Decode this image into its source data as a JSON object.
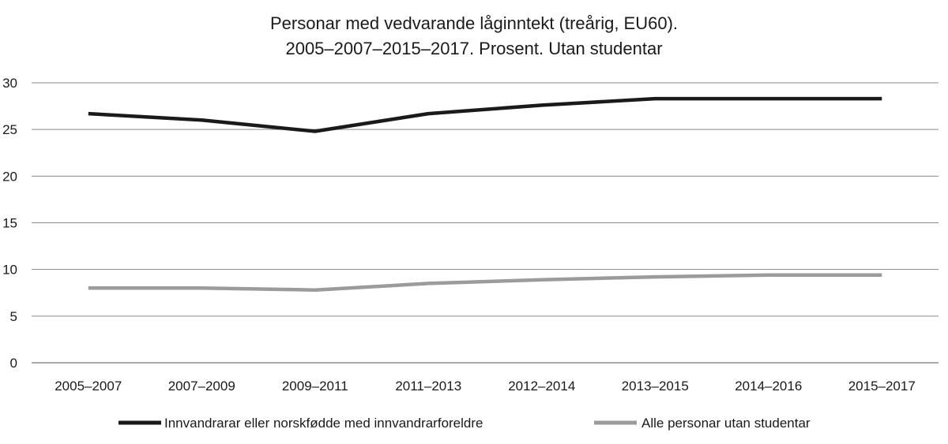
{
  "chart_data": {
    "type": "line",
    "title": "Personar med vedvarande låginntekt (treårig, EU60).",
    "subtitle": "2005–2007–2015–2017. Prosent. Utan studentar",
    "xlabel": "",
    "ylabel": "",
    "categories": [
      "2005–2007",
      "2007–2009",
      "2009–2011",
      "2011–2013",
      "2012–2014",
      "2013–2015",
      "2014–2016",
      "2015–2017"
    ],
    "ylim": [
      0,
      30
    ],
    "yticks": [
      0,
      5,
      10,
      15,
      20,
      25,
      30
    ],
    "grid": true,
    "legend_position": "bottom",
    "series": [
      {
        "name": "Innvandrarar eller norskfødde med innvandrarforeldre",
        "color": "#1a1a1a",
        "values": [
          26.7,
          26.0,
          24.8,
          26.7,
          27.6,
          28.3,
          28.3,
          28.3
        ]
      },
      {
        "name": "Alle personar utan studentar",
        "color": "#9b9b9b",
        "values": [
          8.0,
          8.0,
          7.8,
          8.5,
          8.9,
          9.2,
          9.4,
          9.4
        ]
      }
    ]
  }
}
